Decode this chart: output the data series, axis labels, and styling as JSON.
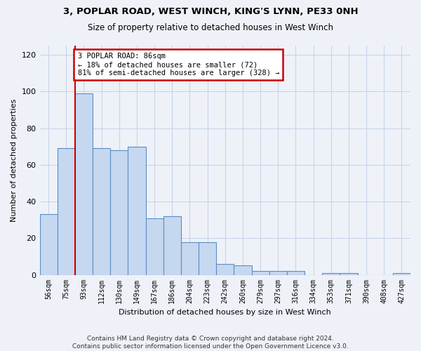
{
  "title_line1": "3, POPLAR ROAD, WEST WINCH, KING'S LYNN, PE33 0NH",
  "title_line2": "Size of property relative to detached houses in West Winch",
  "xlabel": "Distribution of detached houses by size in West Winch",
  "ylabel": "Number of detached properties",
  "categories": [
    "56sqm",
    "75sqm",
    "93sqm",
    "112sqm",
    "130sqm",
    "149sqm",
    "167sqm",
    "186sqm",
    "204sqm",
    "223sqm",
    "242sqm",
    "260sqm",
    "279sqm",
    "297sqm",
    "316sqm",
    "334sqm",
    "353sqm",
    "371sqm",
    "390sqm",
    "408sqm",
    "427sqm"
  ],
  "values": [
    33,
    69,
    99,
    69,
    68,
    70,
    31,
    32,
    18,
    18,
    6,
    5,
    2,
    2,
    2,
    0,
    1,
    1,
    0,
    0,
    1
  ],
  "bar_color": "#c5d8f0",
  "bar_edge_color": "#5b8dc8",
  "vline_x_index": 1.5,
  "vline_color": "#cc0000",
  "annotation_text": "3 POPLAR ROAD: 86sqm\n← 18% of detached houses are smaller (72)\n81% of semi-detached houses are larger (328) →",
  "annotation_box_color": "#ffffff",
  "annotation_box_edge_color": "#cc0000",
  "ylim": [
    0,
    125
  ],
  "yticks": [
    0,
    20,
    40,
    60,
    80,
    100,
    120
  ],
  "footnote": "Contains HM Land Registry data © Crown copyright and database right 2024.\nContains public sector information licensed under the Open Government Licence v3.0.",
  "background_color": "#eef2f8",
  "plot_bg_color": "#eef2f8",
  "grid_color": "#c8d4e8",
  "title_fontsize": 9.5,
  "subtitle_fontsize": 8.5
}
